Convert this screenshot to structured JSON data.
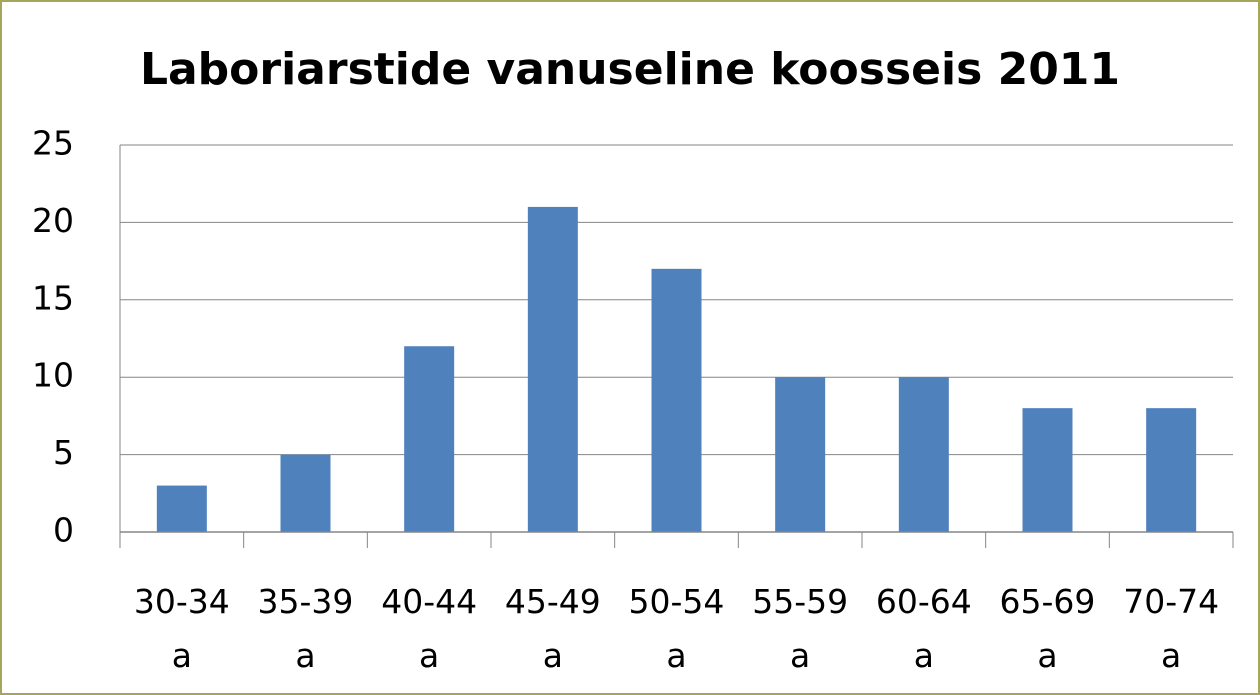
{
  "chart_data": {
    "type": "bar",
    "title": "Laboriarstide vanuseline koosseis 2011",
    "categories": [
      "30-34 a",
      "35-39 a",
      "40-44 a",
      "45-49 a",
      "50-54 a",
      "55-59 a",
      "60-64 a",
      "65-69 a",
      "70-74 a"
    ],
    "values": [
      3,
      5,
      12,
      21,
      17,
      10,
      10,
      8,
      8
    ],
    "color": "#4f81bd",
    "ylim": [
      0,
      25
    ],
    "yticks": [
      0,
      5,
      10,
      15,
      20,
      25
    ],
    "grid": true
  }
}
